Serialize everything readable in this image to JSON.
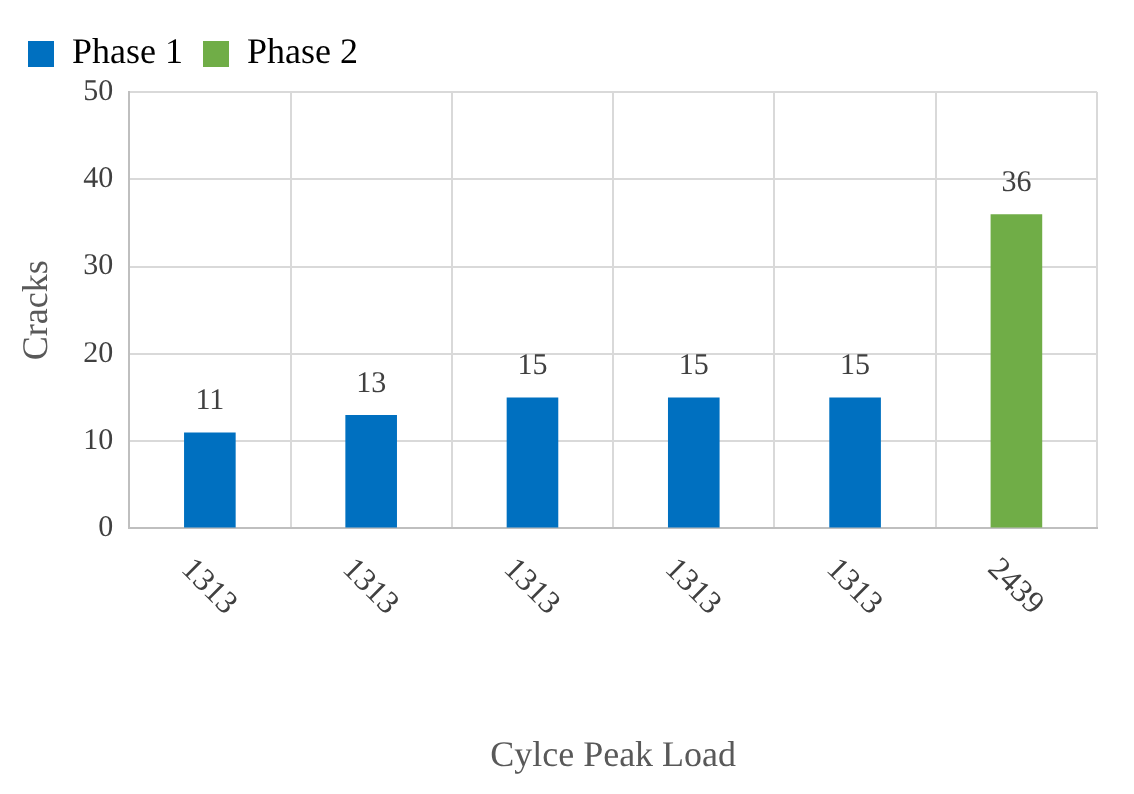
{
  "chart_data": {
    "type": "bar",
    "xlabel": "Cylce Peak Load",
    "ylabel": "Cracks",
    "categories": [
      "1313",
      "1313",
      "1313",
      "1313",
      "1313",
      "2439"
    ],
    "series": [
      {
        "name": "Phase 1",
        "color": "#0070c0",
        "values": [
          11,
          13,
          15,
          15,
          15,
          null
        ]
      },
      {
        "name": "Phase 2",
        "color": "#70ad47",
        "values": [
          null,
          null,
          null,
          null,
          null,
          36
        ]
      }
    ],
    "ylim": [
      0,
      50
    ],
    "yticks": [
      0,
      10,
      20,
      30,
      40,
      50
    ],
    "grid": true,
    "legend": "top left",
    "data_labels": true
  }
}
